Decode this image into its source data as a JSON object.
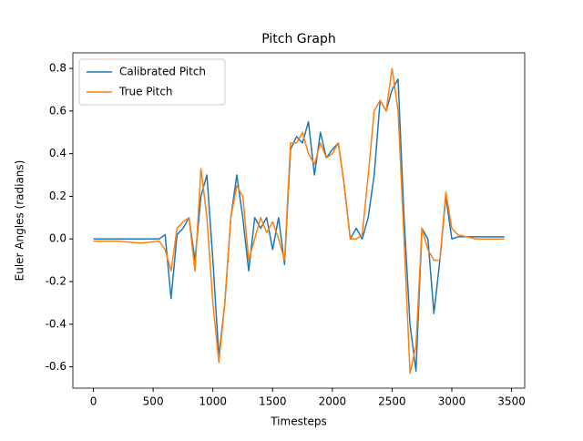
{
  "chart_data": {
    "type": "line",
    "title": "Pitch Graph",
    "x_label": "Timesteps",
    "y_label": "Euler Angles (radians)",
    "x": [
      0,
      200,
      400,
      550,
      600,
      650,
      700,
      750,
      800,
      850,
      900,
      950,
      1000,
      1050,
      1100,
      1150,
      1200,
      1250,
      1300,
      1350,
      1400,
      1450,
      1500,
      1550,
      1600,
      1650,
      1700,
      1750,
      1800,
      1850,
      1900,
      1950,
      2000,
      2050,
      2100,
      2150,
      2200,
      2250,
      2300,
      2350,
      2400,
      2450,
      2500,
      2550,
      2600,
      2650,
      2700,
      2750,
      2800,
      2850,
      2900,
      2950,
      3000,
      3050,
      3200,
      3440
    ],
    "series": [
      {
        "name": "Calibrated Pitch",
        "color": "#1f77b4",
        "values": [
          0.0,
          0.0,
          0.0,
          0.0,
          0.02,
          -0.28,
          0.02,
          0.05,
          0.1,
          -0.1,
          0.2,
          0.3,
          -0.1,
          -0.55,
          -0.3,
          0.1,
          0.3,
          0.1,
          -0.15,
          0.1,
          0.05,
          0.1,
          -0.05,
          0.1,
          -0.12,
          0.42,
          0.48,
          0.45,
          0.55,
          0.3,
          0.5,
          0.38,
          0.42,
          0.45,
          0.25,
          0.0,
          0.05,
          0.0,
          0.1,
          0.3,
          0.65,
          0.6,
          0.7,
          0.75,
          0.1,
          -0.4,
          -0.62,
          0.05,
          0.0,
          -0.35,
          -0.1,
          0.2,
          0.0,
          0.01,
          0.01,
          0.01
        ]
      },
      {
        "name": "True Pitch",
        "color": "#ff7f0e",
        "values": [
          -0.01,
          -0.01,
          -0.02,
          -0.01,
          -0.05,
          -0.15,
          0.05,
          0.08,
          0.1,
          -0.15,
          0.33,
          0.1,
          -0.3,
          -0.58,
          -0.3,
          0.1,
          0.25,
          0.2,
          -0.1,
          0.0,
          0.1,
          0.03,
          0.08,
          0.0,
          -0.1,
          0.45,
          0.45,
          0.5,
          0.4,
          0.35,
          0.45,
          0.38,
          0.4,
          0.45,
          0.25,
          0.0,
          0.0,
          0.02,
          0.3,
          0.6,
          0.65,
          0.6,
          0.8,
          0.6,
          0.0,
          -0.63,
          -0.5,
          0.05,
          -0.05,
          -0.1,
          -0.1,
          0.22,
          0.05,
          0.02,
          0.0,
          0.0
        ]
      }
    ],
    "xlim": [
      -172,
      3610
    ],
    "ylim": [
      -0.7,
      0.873
    ],
    "xticks": [
      0,
      500,
      1000,
      1500,
      2000,
      2500,
      3000,
      3500
    ],
    "yticks": [
      -0.6,
      -0.4,
      -0.2,
      {
        "value": 0,
        "label": "0.0"
      },
      0.2,
      0.4,
      0.6,
      0.8
    ],
    "legend": "upper left",
    "grid": false
  }
}
